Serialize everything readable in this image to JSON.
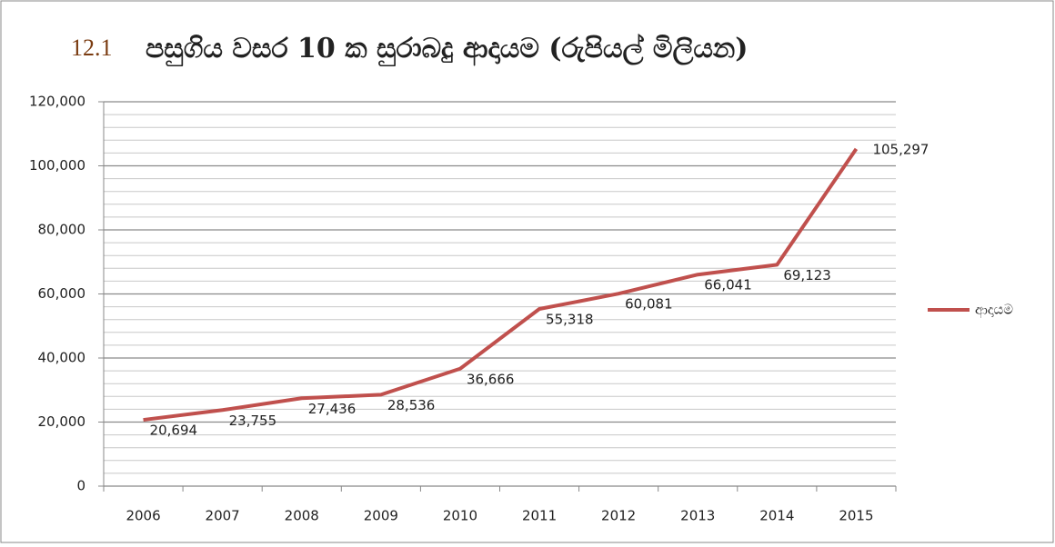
{
  "chart_data": {
    "type": "line",
    "figure_number": "12.1",
    "title": "පසුගිය වසර 10 ක සුරාබදු ආදායම (රුපියල් මිලියන)",
    "categories": [
      "2006",
      "2007",
      "2008",
      "2009",
      "2010",
      "2011",
      "2012",
      "2013",
      "2014",
      "2015"
    ],
    "series": [
      {
        "name": "ආදායම",
        "color": "#c0504d",
        "values": [
          20694,
          23755,
          27436,
          28536,
          36666,
          55318,
          60081,
          66041,
          69123,
          105297
        ],
        "value_labels": [
          "20,694",
          "23,755",
          "27,436",
          "28,536",
          "36,666",
          "55,318",
          "60,081",
          "66,041",
          "69,123",
          "105,297"
        ]
      }
    ],
    "ylim": [
      0,
      120000
    ],
    "yticks": [
      0,
      {
        "value": 20000,
        "label": "20,000"
      },
      {
        "value": 40000,
        "label": "40,000"
      },
      {
        "value": 60000,
        "label": "60,000"
      },
      {
        "value": 80000,
        "label": "80,000"
      },
      {
        "value": 100000,
        "label": "100,000"
      },
      {
        "value": 120000,
        "label": "120,000"
      }
    ],
    "grid": true,
    "minor_grid_step": 4000,
    "legend": "right"
  }
}
